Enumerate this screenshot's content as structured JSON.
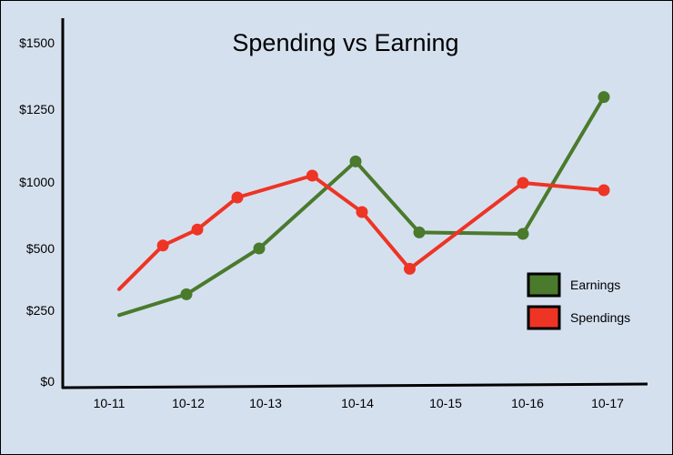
{
  "chart_data": {
    "type": "line",
    "title": "Spending vs Earning",
    "xlabel": "",
    "ylabel": "",
    "categories": [
      "10-11",
      "10-12",
      "10-13",
      "10-14",
      "10-15",
      "10-16",
      "10-17"
    ],
    "y_ticks": [
      "$0",
      "$250",
      "$500",
      "$1000",
      "$1250",
      "$1500"
    ],
    "grid": false,
    "legend_position": "right",
    "series": [
      {
        "name": "Earnings",
        "color": "#4a7a2c",
        "points": [
          {
            "x": "10-11",
            "y": 240,
            "marker": false
          },
          {
            "x": "10-12",
            "y": 320,
            "marker": true
          },
          {
            "x": "10-13",
            "y": 500,
            "marker": true
          },
          {
            "x": "10-14",
            "y": 1050,
            "marker": true
          },
          {
            "x": "10-15",
            "y": 610,
            "marker": true
          },
          {
            "x": "10-16",
            "y": 600,
            "marker": true
          },
          {
            "x": "10-17",
            "y": 1280,
            "marker": true
          }
        ]
      },
      {
        "name": "Spendings",
        "color": "#ee3424",
        "points": [
          {
            "x": "10-11",
            "y": 340,
            "marker": false
          },
          {
            "x": "10-11.65",
            "y": 520,
            "marker": true
          },
          {
            "x": "10-12.15",
            "y": 630,
            "marker": true
          },
          {
            "x": "10-12.7",
            "y": 850,
            "marker": true
          },
          {
            "x": "10-13.55",
            "y": 1000,
            "marker": true
          },
          {
            "x": "10-14.1",
            "y": 750,
            "marker": true
          },
          {
            "x": "10-14.85",
            "y": 420,
            "marker": true
          },
          {
            "x": "10-16",
            "y": 950,
            "marker": true
          },
          {
            "x": "10-17",
            "y": 900,
            "marker": true
          }
        ]
      }
    ]
  }
}
